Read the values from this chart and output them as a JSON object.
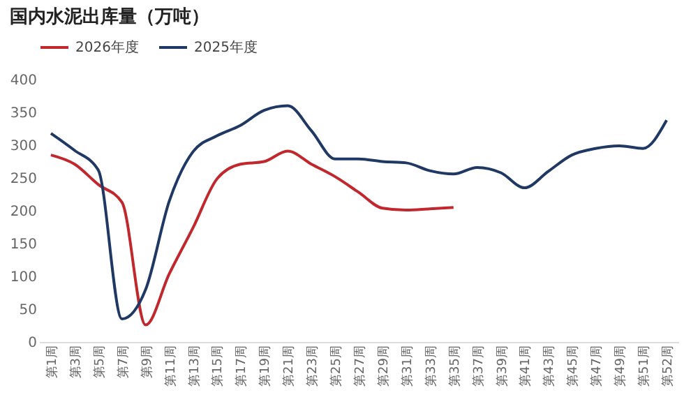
{
  "chart_data": {
    "type": "line",
    "title": "国内水泥出库量（万吨）",
    "categories": [
      "第1周",
      "第3周",
      "第5周",
      "第7周",
      "第9周",
      "第11周",
      "第13周",
      "第15周",
      "第17周",
      "第19周",
      "第21周",
      "第23周",
      "第25周",
      "第27周",
      "第29周",
      "第31周",
      "第33周",
      "第35周",
      "第37周",
      "第39周",
      "第41周",
      "第43周",
      "第45周",
      "第47周",
      "第49周",
      "第51周",
      "第52周"
    ],
    "series": [
      {
        "name": "2026年度",
        "color": "#c0282d",
        "values": [
          285,
          271,
          240,
          213,
          26,
          104,
          174,
          248,
          271,
          275,
          291,
          271,
          252,
          228,
          204,
          201,
          203,
          205,
          null,
          null,
          null,
          null,
          null,
          null,
          null,
          null,
          null
        ]
      },
      {
        "name": "2025年度",
        "color": "#1f3864",
        "values": [
          318,
          292,
          262,
          35,
          80,
          215,
          290,
          314,
          330,
          353,
          360,
          322,
          279,
          279,
          275,
          273,
          261,
          256,
          266,
          258,
          235,
          260,
          285,
          295,
          299,
          295,
          338
        ]
      }
    ],
    "ylim": [
      0,
      400
    ],
    "yticks": [
      0,
      50,
      100,
      150,
      200,
      250,
      300,
      350,
      400
    ],
    "legend": "top"
  }
}
